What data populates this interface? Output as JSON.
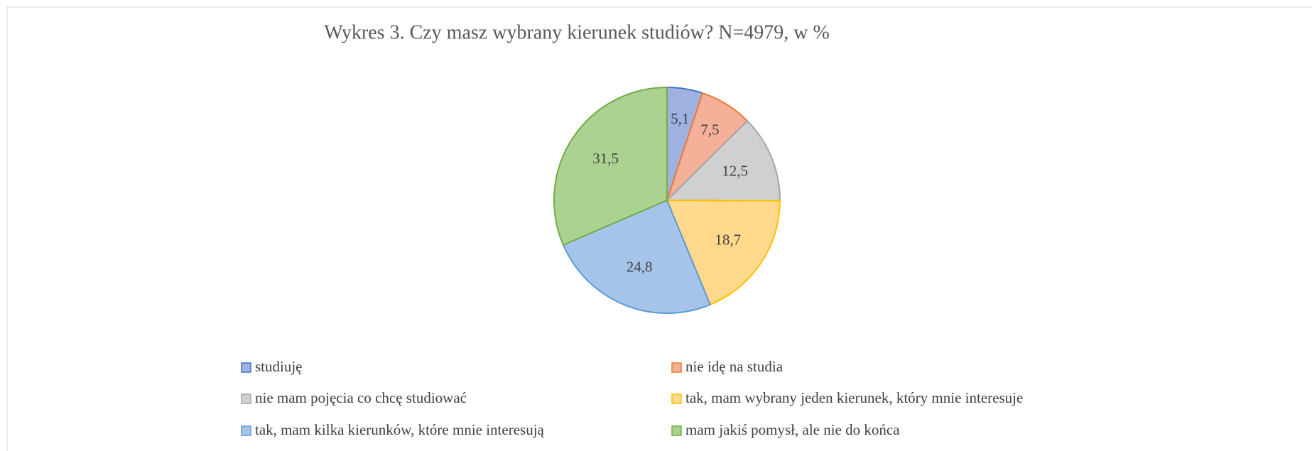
{
  "chart_data": {
    "type": "pie",
    "title": "Wykres 3. Czy masz wybrany kierunek studiów? N=4979, w %",
    "categories": [
      "studiuję",
      "nie idę na studia",
      "nie mam pojęcia co chcę studiować",
      "tak, mam wybrany jeden kierunek, który mnie interesuje",
      "tak, mam kilka kierunków, które mnie interesują",
      "mam jakiś pomysł, ale nie do końca"
    ],
    "values": [
      5.1,
      7.5,
      12.5,
      18.7,
      24.8,
      31.5
    ],
    "value_labels": [
      "5,1",
      "7,5",
      "12,5",
      "18,7",
      "24,8",
      "31,5"
    ],
    "colors": [
      "#9fb1e0",
      "#f4b098",
      "#d0d0d0",
      "#ffd98c",
      "#a6c4ea",
      "#abd291"
    ],
    "edge_colors": [
      "#4472c4",
      "#ed7d31",
      "#a5a5a5",
      "#ffc000",
      "#5b9bd5",
      "#70ad47"
    ],
    "legend": "bottom"
  }
}
